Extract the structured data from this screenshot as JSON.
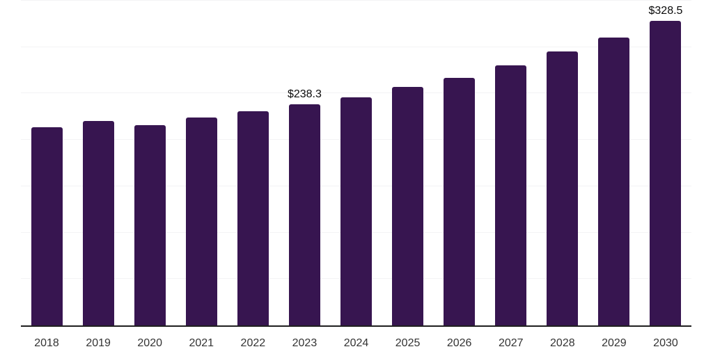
{
  "chart_data": {
    "type": "bar",
    "title": "",
    "xlabel": "",
    "ylabel": "",
    "categories": [
      "2018",
      "2019",
      "2020",
      "2021",
      "2022",
      "2023",
      "2024",
      "2025",
      "2026",
      "2027",
      "2028",
      "2029",
      "2030"
    ],
    "values": [
      213.3,
      220.0,
      215.6,
      223.8,
      230.5,
      238.3,
      246.1,
      257.0,
      266.9,
      280.3,
      295.2,
      310.1,
      328.5
    ],
    "data_labels": [
      "",
      "",
      "",
      "",
      "",
      "$238.3",
      "",
      "",
      "",
      "",
      "",
      "",
      "$328.5"
    ],
    "ylim": [
      0,
      350
    ],
    "gridline_values": [
      50,
      100,
      150,
      200,
      250,
      300,
      350
    ],
    "grid": "horizontal only, no y-axis tick labels",
    "legend_position": "none",
    "colors": {
      "bar": "#371550",
      "axis_line": "#1f1f1f",
      "gridline": "#f3f3f5",
      "x_tick_label": "#333333",
      "data_label": "#0a0a0a",
      "background": "#ffffff"
    }
  }
}
